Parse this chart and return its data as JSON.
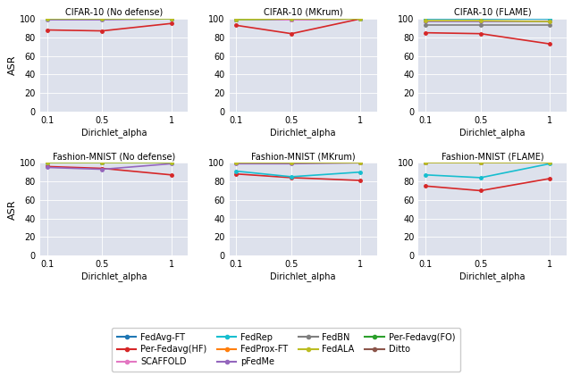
{
  "x_ticks": [
    0.1,
    0.5,
    1.0
  ],
  "x_ticklabels": [
    "0.1",
    "0.5",
    "1"
  ],
  "xlabel": "Dirichlet_alpha",
  "ylabel": "ASR",
  "ylim": [
    0,
    100
  ],
  "yticks": [
    0,
    20,
    40,
    60,
    80,
    100
  ],
  "subplot_titles": [
    "CIFAR-10 (No defense)",
    "CIFAR-10 (MKrum)",
    "CIFAR-10 (FLAME)",
    "Fashion-MNIST (No defense)",
    "Fashion-MNIST (MKrum)",
    "Fashion-MNIST (FLAME)"
  ],
  "methods": [
    "FedAvg-FT",
    "FedProx-FT",
    "Per-Fedavg(FO)",
    "Per-Fedavg(HF)",
    "pFedMe",
    "Ditto",
    "SCAFFOLD",
    "FedBN",
    "FedRep",
    "FedALA"
  ],
  "colors": {
    "FedAvg-FT": "#1f77b4",
    "FedProx-FT": "#ff7f0e",
    "Per-Fedavg(FO)": "#2ca02c",
    "Per-Fedavg(HF)": "#d62728",
    "pFedMe": "#9467bd",
    "Ditto": "#8c564b",
    "SCAFFOLD": "#e377c2",
    "FedBN": "#7f7f7f",
    "FedRep": "#17becf",
    "FedALA": "#bcbd22"
  },
  "data": {
    "CIFAR-10 (No defense)": {
      "FedAvg-FT": [
        100.0,
        100.0,
        100.0
      ],
      "FedProx-FT": [
        100.0,
        100.0,
        100.0
      ],
      "Per-Fedavg(FO)": [
        100.0,
        100.0,
        100.0
      ],
      "Per-Fedavg(HF)": [
        88.0,
        87.0,
        95.0
      ],
      "pFedMe": [
        99.0,
        99.0,
        100.0
      ],
      "Ditto": [
        100.0,
        100.0,
        100.0
      ],
      "SCAFFOLD": [
        100.0,
        100.0,
        100.0
      ],
      "FedBN": [
        100.0,
        100.0,
        100.0
      ],
      "FedRep": [
        100.0,
        100.0,
        100.0
      ],
      "FedALA": [
        100.0,
        100.0,
        100.0
      ]
    },
    "CIFAR-10 (MKrum)": {
      "FedAvg-FT": [
        99.0,
        100.0,
        100.0
      ],
      "FedProx-FT": [
        99.0,
        99.0,
        100.0
      ],
      "Per-Fedavg(FO)": [
        99.0,
        99.5,
        100.0
      ],
      "Per-Fedavg(HF)": [
        93.0,
        84.0,
        100.0
      ],
      "pFedMe": [
        99.0,
        99.0,
        100.0
      ],
      "Ditto": [
        99.0,
        100.0,
        100.0
      ],
      "SCAFFOLD": [
        99.0,
        99.0,
        100.0
      ],
      "FedBN": [
        99.0,
        100.0,
        100.0
      ],
      "FedRep": [
        99.0,
        100.0,
        100.0
      ],
      "FedALA": [
        99.0,
        100.0,
        100.0
      ]
    },
    "CIFAR-10 (FLAME)": {
      "FedAvg-FT": [
        100.0,
        100.0,
        100.0
      ],
      "FedProx-FT": [
        100.0,
        100.0,
        100.0
      ],
      "Per-Fedavg(FO)": [
        100.0,
        100.0,
        100.0
      ],
      "Per-Fedavg(HF)": [
        85.0,
        84.0,
        73.0
      ],
      "pFedMe": [
        97.0,
        97.0,
        97.0
      ],
      "Ditto": [
        100.0,
        100.0,
        100.0
      ],
      "SCAFFOLD": [
        100.0,
        100.0,
        100.0
      ],
      "FedBN": [
        93.0,
        93.0,
        93.0
      ],
      "FedRep": [
        100.0,
        100.0,
        100.0
      ],
      "FedALA": [
        98.0,
        98.0,
        97.0
      ]
    },
    "Fashion-MNIST (No defense)": {
      "FedAvg-FT": [
        100.0,
        100.0,
        100.0
      ],
      "FedProx-FT": [
        100.0,
        100.0,
        100.0
      ],
      "Per-Fedavg(FO)": [
        100.0,
        100.0,
        100.0
      ],
      "Per-Fedavg(HF)": [
        96.0,
        94.0,
        87.0
      ],
      "pFedMe": [
        95.0,
        93.0,
        99.0
      ],
      "Ditto": [
        100.0,
        100.0,
        100.0
      ],
      "SCAFFOLD": [
        100.0,
        100.0,
        100.0
      ],
      "FedBN": [
        100.0,
        100.0,
        100.0
      ],
      "FedRep": [
        100.0,
        100.0,
        100.0
      ],
      "FedALA": [
        100.0,
        100.0,
        100.0
      ]
    },
    "Fashion-MNIST (MKrum)": {
      "FedAvg-FT": [
        100.0,
        100.0,
        100.0
      ],
      "FedProx-FT": [
        100.0,
        100.0,
        100.0
      ],
      "Per-Fedavg(FO)": [
        100.0,
        100.0,
        100.0
      ],
      "Per-Fedavg(HF)": [
        88.0,
        84.0,
        81.0
      ],
      "pFedMe": [
        99.0,
        99.0,
        100.0
      ],
      "Ditto": [
        100.0,
        100.0,
        100.0
      ],
      "SCAFFOLD": [
        100.0,
        100.0,
        100.0
      ],
      "FedBN": [
        100.0,
        100.0,
        100.0
      ],
      "FedRep": [
        91.0,
        85.0,
        90.0
      ],
      "FedALA": [
        100.0,
        100.0,
        100.0
      ]
    },
    "Fashion-MNIST (FLAME)": {
      "FedAvg-FT": [
        100.0,
        100.0,
        100.0
      ],
      "FedProx-FT": [
        100.0,
        100.0,
        100.0
      ],
      "Per-Fedavg(FO)": [
        100.0,
        100.0,
        100.0
      ],
      "Per-Fedavg(HF)": [
        75.0,
        70.0,
        83.0
      ],
      "pFedMe": [
        100.0,
        100.0,
        100.0
      ],
      "Ditto": [
        100.0,
        100.0,
        100.0
      ],
      "SCAFFOLD": [
        100.0,
        100.0,
        100.0
      ],
      "FedBN": [
        100.0,
        100.0,
        100.0
      ],
      "FedRep": [
        87.0,
        84.0,
        99.0
      ],
      "FedALA": [
        100.0,
        100.0,
        100.0
      ]
    }
  },
  "background_color": "#dde1ec",
  "legend_order": [
    "FedAvg-FT",
    "Per-Fedavg(HF)",
    "SCAFFOLD",
    "FedRep",
    "FedProx-FT",
    "pFedMe",
    "FedBN",
    "FedALA",
    "Per-Fedavg(FO)",
    "Ditto"
  ]
}
